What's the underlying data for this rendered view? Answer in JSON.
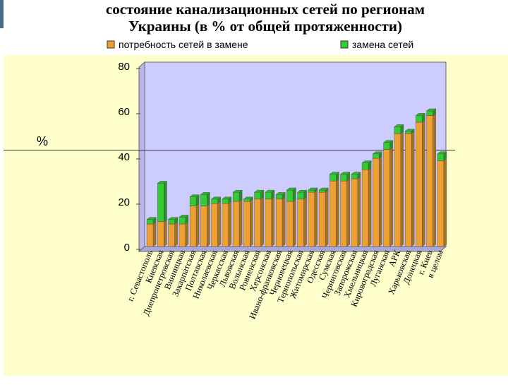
{
  "chart_data": {
    "type": "bar",
    "stacked": true,
    "title": "состояние канализационных сетей по регионам Украины (в % от общей протяженности)",
    "ylabel": "%",
    "categories": [
      "г. Севастополь",
      "Киевская",
      "Днепропетровская",
      "Винницкая",
      "Закарпатская",
      "Полтавская",
      "Николаевская",
      "Черкасская",
      "Львовская",
      "Волынская",
      "Ровненская",
      "Херсонская",
      "Ивано-франковская",
      "Черновецкая",
      "Тернопольская",
      "Житомирская",
      "Одесская",
      "Сумская",
      "Черниговская",
      "Запорожская",
      "Хмельницкая",
      "Кировоградская",
      "Луганская",
      "АРК",
      "Харьковская",
      "Донецкая",
      "г. Киев",
      "в целом"
    ],
    "series": [
      {
        "name": "потребность сетей в замене",
        "color": "#f0a030",
        "values": [
          10,
          11,
          10,
          10,
          18,
          18,
          19,
          19,
          20,
          20,
          21,
          21,
          21,
          20,
          21,
          24,
          24,
          29,
          29,
          30,
          34,
          39,
          43,
          50,
          50,
          55,
          58,
          38
        ]
      },
      {
        "name": "замена сетей",
        "color": "#33cc33",
        "values": [
          2,
          17,
          2,
          3,
          4,
          5,
          2,
          2,
          4,
          1,
          3,
          3,
          2,
          5,
          3,
          1,
          1,
          3,
          3,
          2,
          3,
          2,
          3,
          3,
          1,
          3,
          2,
          3
        ]
      }
    ],
    "ylim": [
      0,
      80
    ],
    "yticks": [
      0,
      20,
      40,
      60,
      80
    ],
    "grid": false,
    "legend": "top"
  }
}
